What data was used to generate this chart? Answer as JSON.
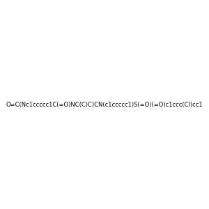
{
  "smiles": "O=C(Nc1ccccc1C(=O)NC(C)C)CN(c1ccccc1)S(=O)(=O)c1ccc(Cl)cc1",
  "image_size": 300,
  "background_color": "#e8e8e8"
}
